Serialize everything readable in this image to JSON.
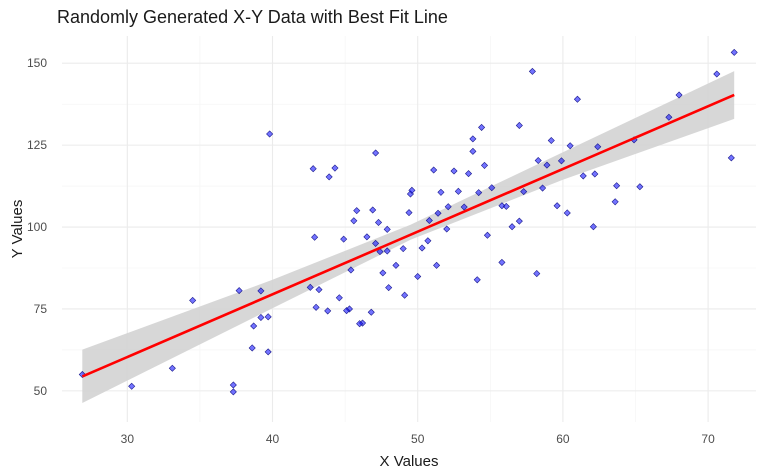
{
  "chart_data": {
    "type": "scatter",
    "title": "Randomly Generated X-Y Data with Best Fit Line",
    "xlabel": "X Values",
    "ylabel": "Y Values",
    "xlim": [
      25.5,
      73.3
    ],
    "ylim": [
      40.5,
      158.3
    ],
    "x_ticks": [
      30,
      40,
      50,
      60,
      70
    ],
    "y_ticks": [
      50,
      75,
      100,
      125,
      150
    ],
    "grid": true,
    "colors": {
      "points": "#0000ff",
      "fit_line": "#ff0000",
      "ribbon": "#d3d3d3",
      "grid": "#ebebeb"
    },
    "points": [
      [
        26.9,
        55.0
      ],
      [
        30.3,
        51.4
      ],
      [
        33.1,
        56.9
      ],
      [
        34.5,
        77.6
      ],
      [
        37.3,
        51.8
      ],
      [
        37.3,
        49.7
      ],
      [
        37.7,
        80.6
      ],
      [
        38.6,
        63.1
      ],
      [
        38.7,
        69.8
      ],
      [
        39.2,
        80.5
      ],
      [
        39.2,
        72.4
      ],
      [
        39.7,
        61.9
      ],
      [
        39.7,
        72.6
      ],
      [
        39.8,
        128.4
      ],
      [
        42.6,
        81.6
      ],
      [
        42.8,
        117.8
      ],
      [
        42.9,
        96.9
      ],
      [
        43.2,
        80.9
      ],
      [
        43.0,
        75.5
      ],
      [
        43.8,
        74.4
      ],
      [
        43.9,
        115.3
      ],
      [
        44.3,
        118.0
      ],
      [
        44.6,
        78.4
      ],
      [
        44.9,
        96.3
      ],
      [
        45.3,
        75.0
      ],
      [
        45.1,
        74.5
      ],
      [
        45.4,
        86.9
      ],
      [
        45.6,
        101.9
      ],
      [
        45.8,
        105.0
      ],
      [
        46.2,
        70.7
      ],
      [
        46.0,
        70.5
      ],
      [
        46.5,
        97.0
      ],
      [
        46.8,
        74.0
      ],
      [
        46.9,
        105.2
      ],
      [
        47.1,
        122.6
      ],
      [
        47.3,
        101.4
      ],
      [
        47.1,
        95.0
      ],
      [
        47.4,
        92.5
      ],
      [
        47.6,
        86.0
      ],
      [
        47.9,
        99.3
      ],
      [
        47.9,
        92.7
      ],
      [
        48.0,
        81.5
      ],
      [
        48.5,
        88.3
      ],
      [
        49.0,
        93.4
      ],
      [
        49.1,
        79.2
      ],
      [
        49.4,
        104.4
      ],
      [
        49.5,
        110.1
      ],
      [
        49.6,
        111.2
      ],
      [
        50.0,
        84.9
      ],
      [
        50.3,
        93.6
      ],
      [
        50.7,
        95.8
      ],
      [
        50.8,
        102.0
      ],
      [
        51.1,
        117.4
      ],
      [
        51.3,
        88.3
      ],
      [
        51.6,
        110.6
      ],
      [
        51.4,
        104.2
      ],
      [
        52.0,
        99.4
      ],
      [
        52.1,
        106.2
      ],
      [
        52.5,
        117.1
      ],
      [
        52.8,
        110.9
      ],
      [
        53.2,
        106.1
      ],
      [
        53.5,
        116.3
      ],
      [
        53.8,
        126.9
      ],
      [
        53.8,
        123.1
      ],
      [
        54.1,
        83.9
      ],
      [
        54.2,
        110.5
      ],
      [
        54.4,
        130.4
      ],
      [
        54.6,
        118.8
      ],
      [
        54.8,
        97.5
      ],
      [
        55.1,
        112.0
      ],
      [
        55.8,
        106.5
      ],
      [
        55.8,
        89.2
      ],
      [
        56.1,
        106.3
      ],
      [
        56.5,
        100.1
      ],
      [
        57.0,
        131.0
      ],
      [
        57.0,
        101.8
      ],
      [
        57.3,
        110.8
      ],
      [
        57.9,
        147.5
      ],
      [
        58.2,
        85.8
      ],
      [
        58.3,
        120.3
      ],
      [
        58.6,
        111.9
      ],
      [
        58.9,
        118.9
      ],
      [
        59.2,
        126.4
      ],
      [
        59.6,
        106.5
      ],
      [
        59.9,
        120.2
      ],
      [
        60.3,
        104.3
      ],
      [
        60.5,
        124.8
      ],
      [
        61.0,
        139.0
      ],
      [
        61.4,
        115.6
      ],
      [
        62.1,
        100.1
      ],
      [
        62.2,
        116.2
      ],
      [
        62.4,
        124.5
      ],
      [
        63.6,
        107.7
      ],
      [
        63.7,
        112.6
      ],
      [
        64.9,
        126.6
      ],
      [
        65.3,
        112.3
      ],
      [
        67.3,
        133.5
      ],
      [
        68.0,
        140.3
      ],
      [
        70.6,
        146.7
      ],
      [
        71.6,
        121.1
      ],
      [
        71.8,
        153.3
      ]
    ],
    "fit_line": {
      "x_range": [
        26.9,
        71.8
      ],
      "y_at_start": 54.4,
      "y_at_end": 140.3
    },
    "confidence_band": {
      "x": [
        26.9,
        40.0,
        49.5,
        60.0,
        71.8
      ],
      "lower": [
        46.3,
        75.2,
        96.1,
        114.4,
        133.0
      ],
      "upper": [
        62.6,
        83.9,
        100.7,
        122.8,
        147.6
      ]
    }
  }
}
